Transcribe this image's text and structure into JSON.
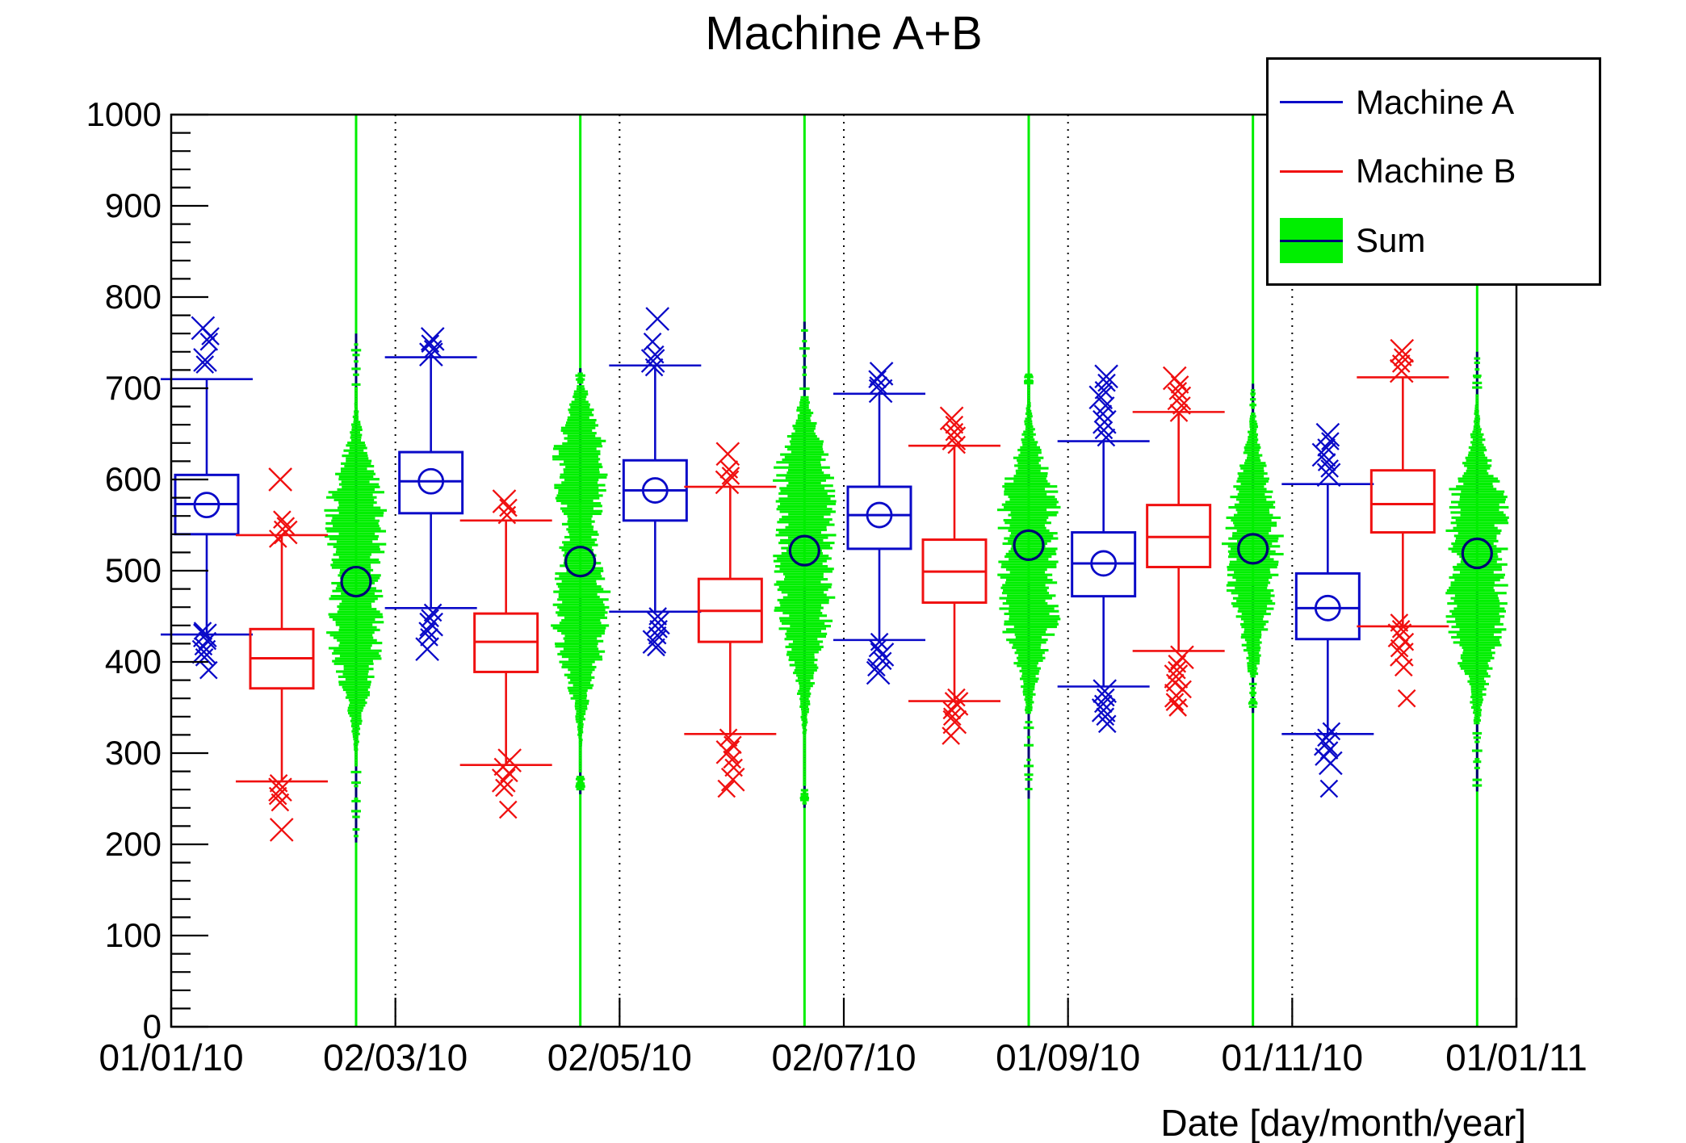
{
  "title": "Machine A+B",
  "colors": {
    "machine_a": "#0a0ac8",
    "machine_b": "#f01010",
    "sum_fill": "#00ef00",
    "sum_line": "#000074",
    "axis": "#000000",
    "grid": "#000000",
    "background": "#ffffff"
  },
  "legend": {
    "entries": [
      {
        "label": "Machine A",
        "type": "line",
        "color": "#0a0ac8"
      },
      {
        "label": "Machine B",
        "type": "line",
        "color": "#f01010"
      },
      {
        "label": "Sum",
        "type": "box",
        "fill": "#00ef00",
        "line": "#000074"
      }
    ]
  },
  "chart_data": {
    "type": "candle-violin",
    "title": "Machine A+B",
    "xlabel": "Date [day/month/year]",
    "ylabel": "",
    "ylim": [
      0,
      1000
    ],
    "x_axis_type": "time",
    "grid": "vertical dotted lines at labeled date ticks",
    "legend_position": "top-right",
    "y_tick_labels": [
      "0",
      "100",
      "200",
      "300",
      "400",
      "500",
      "600",
      "700",
      "800",
      "900",
      "1000"
    ],
    "y_minor_tick_step": 20,
    "x_tick_labels": [
      "01/01/10",
      "02/03/10",
      "02/05/10",
      "02/07/10",
      "01/09/10",
      "01/11/10",
      "01/01/11"
    ],
    "series": [
      {
        "name": "Machine A",
        "style": "candle",
        "color": "#0a0ac8",
        "show_mean_circle": true,
        "groups": [
          {
            "whisker_low": 430,
            "q1": 540,
            "median": 573,
            "mean": 572,
            "q3": 605,
            "whisker_high": 710,
            "outliers_high": [
              766,
              757,
              751,
              731,
              726
            ],
            "outliers_low": [
              434,
              429,
              423,
              417,
              411,
              405,
              391
            ]
          },
          {
            "whisker_low": 459,
            "q1": 563,
            "median": 598,
            "mean": 598,
            "q3": 630,
            "whisker_high": 734,
            "outliers_high": [
              754,
              749,
              743,
              737
            ],
            "outliers_low": [
              454,
              448,
              441,
              434,
              427,
              414
            ]
          },
          {
            "whisker_low": 455,
            "q1": 555,
            "median": 588,
            "mean": 588,
            "q3": 621,
            "whisker_high": 725,
            "outliers_high": [
              776,
              751,
              737,
              730,
              723
            ],
            "outliers_low": [
              450,
              443,
              436,
              429,
              422,
              416
            ]
          },
          {
            "whisker_low": 424,
            "q1": 524,
            "median": 561,
            "mean": 561,
            "q3": 592,
            "whisker_high": 694,
            "outliers_high": [
              716,
              710,
              703,
              697
            ],
            "outliers_low": [
              422,
              415,
              408,
              401,
              394,
              388
            ]
          },
          {
            "whisker_low": 373,
            "q1": 472,
            "median": 508,
            "mean": 508,
            "q3": 542,
            "whisker_high": 642,
            "outliers_high": [
              713,
              706,
              698,
              690,
              681,
              672,
              663,
              654,
              646
            ],
            "outliers_low": [
              368,
              361,
              354,
              347,
              340,
              332
            ]
          },
          {
            "whisker_low": 321,
            "q1": 425,
            "median": 459,
            "mean": 459,
            "q3": 497,
            "whisker_high": 595,
            "outliers_high": [
              649,
              642,
              635,
              627,
              619,
              612,
              605
            ],
            "outliers_low": [
              324,
              317,
              310,
              303,
              296,
              289,
              261
            ]
          }
        ]
      },
      {
        "name": "Machine B",
        "style": "candle",
        "color": "#f01010",
        "show_mean_circle": false,
        "groups": [
          {
            "whisker_low": 269,
            "q1": 371,
            "median": 404,
            "q3": 436,
            "whisker_high": 539,
            "outliers_high": [
              600,
              556,
              549,
              542,
              535
            ],
            "outliers_low": [
              267,
              260,
              253,
              246,
              216
            ]
          },
          {
            "whisker_low": 287,
            "q1": 389,
            "median": 422,
            "q3": 453,
            "whisker_high": 555,
            "outliers_high": [
              576,
              569,
              561
            ],
            "outliers_low": [
              292,
              285,
              278,
              270,
              262,
              238
            ]
          },
          {
            "whisker_low": 321,
            "q1": 422,
            "median": 456,
            "q3": 491,
            "whisker_high": 592,
            "outliers_high": [
              628,
              611,
              604,
              597
            ],
            "outliers_low": [
              317,
              309,
              301,
              293,
              284,
              271,
              261
            ]
          },
          {
            "whisker_low": 357,
            "q1": 465,
            "median": 499,
            "q3": 534,
            "whisker_high": 637,
            "outliers_high": [
              667,
              660,
              652,
              645,
              638
            ],
            "outliers_low": [
              361,
              354,
              347,
              340,
              334,
              319
            ]
          },
          {
            "whisker_low": 412,
            "q1": 504,
            "median": 537,
            "q3": 572,
            "whisker_high": 674,
            "outliers_high": [
              711,
              704,
              697,
              689,
              681,
              673
            ],
            "outliers_low": [
              405,
              398,
              391,
              384,
              377,
              370,
              363,
              356,
              350
            ]
          },
          {
            "whisker_low": 439,
            "q1": 542,
            "median": 573,
            "q3": 610,
            "whisker_high": 712,
            "outliers_high": [
              741,
              734,
              727,
              719
            ],
            "outliers_low": [
              443,
              436,
              429,
              422,
              415,
              408,
              394,
              360
            ]
          }
        ]
      },
      {
        "name": "Sum",
        "style": "violin",
        "fill": "#00ef00",
        "line_color": "#000074",
        "axis_line_range": [
          0,
          1000
        ],
        "groups": [
          {
            "min": 202,
            "max": 760,
            "mean": 488,
            "envelope": [
              285,
              700
            ],
            "lobes": [
              [
                565,
                50,
                1.0
              ],
              [
                428,
                55,
                0.92
              ]
            ]
          },
          {
            "min": 255,
            "max": 722,
            "mean": 510,
            "envelope": [
              278,
              702
            ],
            "lobes": [
              [
                618,
                48,
                0.9
              ],
              [
                455,
                62,
                1.0
              ]
            ]
          },
          {
            "min": 240,
            "max": 773,
            "mean": 522,
            "envelope": [
              264,
              690
            ],
            "lobes": [
              [
                595,
                52,
                0.85
              ],
              [
                482,
                70,
                1.0
              ]
            ]
          },
          {
            "min": 250,
            "max": 711,
            "mean": 528,
            "envelope": [
              342,
              712
            ],
            "lobes": [
              [
                558,
                55,
                0.85
              ],
              [
                478,
                65,
                1.0
              ]
            ]
          },
          {
            "min": 344,
            "max": 705,
            "mean": 524,
            "envelope": [
              382,
              672
            ],
            "lobes": [
              [
                522,
                72,
                1.0
              ]
            ]
          },
          {
            "min": 258,
            "max": 740,
            "mean": 519,
            "envelope": [
              331,
              692
            ],
            "lobes": [
              [
                542,
                60,
                0.9
              ],
              [
                472,
                68,
                1.0
              ]
            ]
          }
        ]
      }
    ]
  }
}
